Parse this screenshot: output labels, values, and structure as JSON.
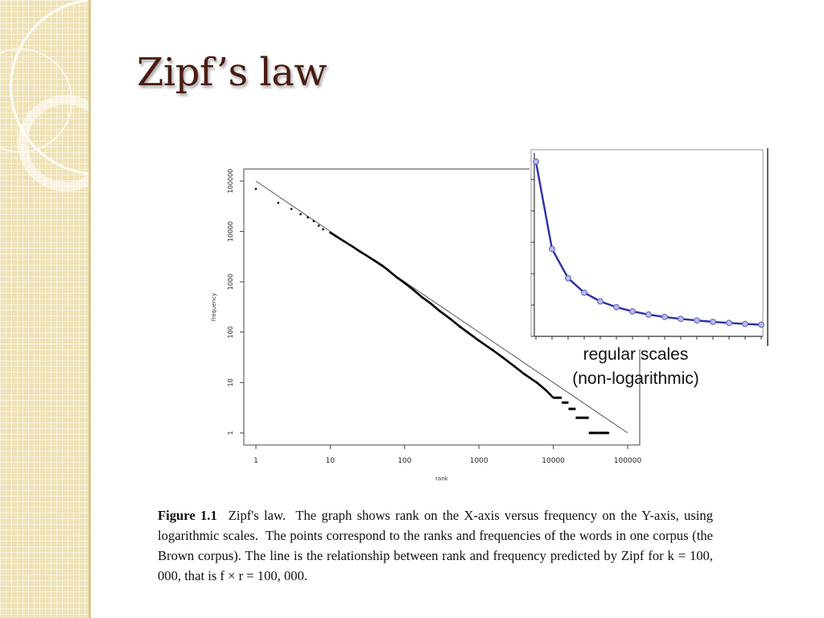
{
  "slide": {
    "title": "Zipf’s law",
    "colors": {
      "title": "#4a1c12",
      "side_band": "#efe2b6",
      "inset_line": "#2b2fa8",
      "inset_marker": "#b9bde8"
    }
  },
  "inset": {
    "caption_line1": "regular scales",
    "caption_line2": "(non-logarithmic)"
  },
  "figure": {
    "label": "Figure 1.1",
    "text": "Zipf's law.  The graph shows rank on the X-axis versus frequency on the Y-axis, using logarithmic scales.  The points correspond to the ranks and frequencies of the words in one corpus (the Brown corpus). The line is the relationship between rank and frequency predicted by Zipf for k = 100, 000, that is f × r = 100, 000."
  },
  "chart_data": [
    {
      "type": "scatter",
      "scale": "log-log",
      "xlabel": "rank",
      "ylabel": "frequency",
      "xlim": [
        1,
        100000
      ],
      "ylim": [
        1,
        100000
      ],
      "x_ticks": [
        "1",
        "10",
        "100",
        "1000",
        "10000",
        "100000"
      ],
      "y_ticks": [
        "1",
        "10",
        "100",
        "1000",
        "10000",
        "100000"
      ],
      "series": [
        {
          "kind": "points",
          "x": [
            1,
            2,
            3,
            4,
            5,
            6,
            7,
            8,
            10,
            12,
            15,
            20,
            25,
            30,
            40,
            50,
            60,
            80,
            100,
            130,
            170,
            220,
            300,
            400,
            550,
            700,
            1000,
            1500,
            2000,
            3000,
            4000,
            6000,
            8000,
            10000,
            13000,
            16000,
            20000,
            30000,
            40000,
            55000
          ],
          "y": [
            70000,
            37000,
            28000,
            22000,
            19000,
            16000,
            13000,
            11000,
            9500,
            8000,
            6500,
            5000,
            4000,
            3400,
            2600,
            2100,
            1700,
            1200,
            950,
            700,
            500,
            380,
            260,
            190,
            130,
            100,
            68,
            45,
            33,
            21,
            15,
            10,
            7,
            5,
            4,
            3,
            2,
            1,
            1,
            1
          ]
        },
        {
          "kind": "line",
          "x": [
            1,
            100000
          ],
          "y": [
            100000,
            1
          ]
        }
      ]
    },
    {
      "type": "line",
      "scale": "linear",
      "x": [
        1,
        2,
        3,
        4,
        5,
        6,
        7,
        8,
        9,
        10,
        11,
        12,
        13,
        14,
        15
      ],
      "y": [
        1.0,
        0.5,
        0.333,
        0.25,
        0.2,
        0.167,
        0.143,
        0.125,
        0.111,
        0.1,
        0.091,
        0.083,
        0.077,
        0.071,
        0.067
      ],
      "ylim": [
        0,
        1.05
      ],
      "markers": true
    }
  ]
}
